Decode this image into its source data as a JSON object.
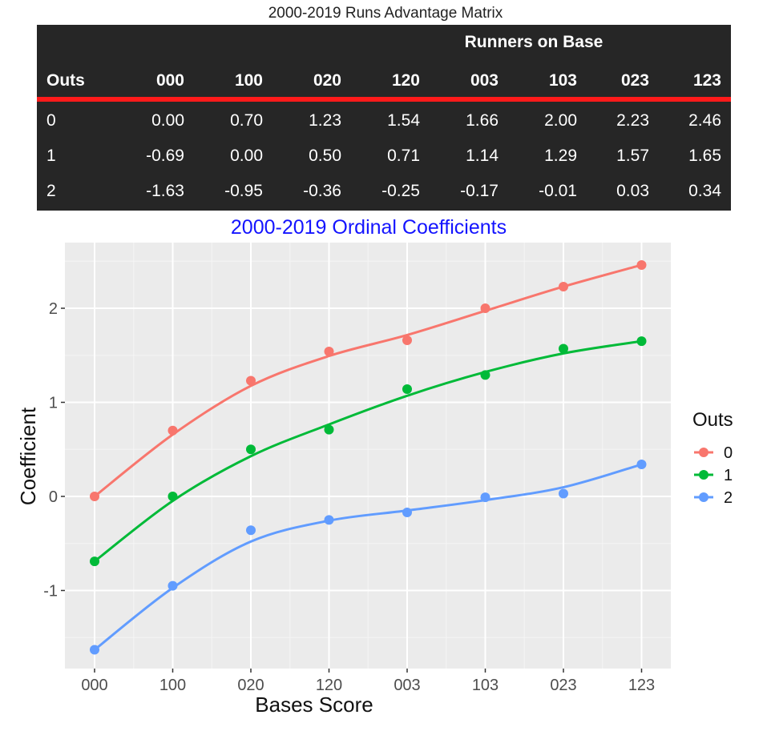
{
  "table": {
    "title": "2000-2019 Runs Advantage Matrix",
    "group_header": "Runners on Base",
    "columns": [
      "Outs",
      "000",
      "100",
      "020",
      "120",
      "003",
      "103",
      "023",
      "123"
    ],
    "rows": [
      [
        "0",
        "0.00",
        "0.70",
        "1.23",
        "1.54",
        "1.66",
        "2.00",
        "2.23",
        "2.46"
      ],
      [
        "1",
        "-0.69",
        "0.00",
        "0.50",
        "0.71",
        "1.14",
        "1.29",
        "1.57",
        "1.65"
      ],
      [
        "2",
        "-1.63",
        "-0.95",
        "-0.36",
        "-0.25",
        "-0.17",
        "-0.01",
        "0.03",
        "0.34"
      ]
    ],
    "colors": {
      "background": "#262626",
      "rule": "#ff1a1a",
      "text": "#ffffff"
    }
  },
  "chart_data": {
    "type": "scatter",
    "title": "2000-2019 Ordinal Coefficients",
    "xlabel": "Bases Score",
    "ylabel": "Coefficient",
    "categories": [
      "000",
      "100",
      "020",
      "120",
      "003",
      "103",
      "023",
      "123"
    ],
    "yticks": [
      "-1",
      "0",
      "1",
      "2"
    ],
    "ylim": [
      -1.85,
      2.65
    ],
    "grid": true,
    "smooth_lines": true,
    "legend": {
      "title": "Outs",
      "position": "right"
    },
    "series": [
      {
        "name": "0",
        "color": "#F8766D",
        "values": [
          0.0,
          0.7,
          1.23,
          1.54,
          1.66,
          2.0,
          2.23,
          2.46
        ]
      },
      {
        "name": "1",
        "color": "#00BA38",
        "values": [
          -0.69,
          0.0,
          0.5,
          0.71,
          1.14,
          1.29,
          1.57,
          1.65
        ]
      },
      {
        "name": "2",
        "color": "#619CFF",
        "values": [
          -1.63,
          -0.95,
          -0.36,
          -0.25,
          -0.17,
          -0.01,
          0.03,
          0.34
        ]
      }
    ]
  }
}
